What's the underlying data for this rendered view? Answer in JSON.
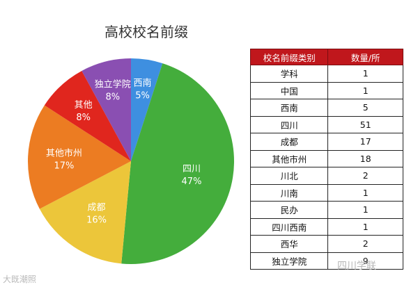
{
  "chart_data": [
    {
      "type": "pie",
      "title": "高校校名前缀",
      "slices": [
        {
          "name": "西南",
          "percent": 5,
          "label_pct": "5%",
          "color": "#3e8fe0"
        },
        {
          "name": "四川",
          "percent": 47,
          "label_pct": "47%",
          "color": "#44ad3c"
        },
        {
          "name": "成都",
          "percent": 16,
          "label_pct": "16%",
          "color": "#ecc63a"
        },
        {
          "name": "其他市州",
          "percent": 17,
          "label_pct": "17%",
          "color": "#ec7c22"
        },
        {
          "name": "其他",
          "percent": 8,
          "label_pct": "8%",
          "color": "#e0261e"
        },
        {
          "name": "独立学院",
          "percent": 8,
          "label_pct": "8%",
          "color": "#8a4fb2"
        }
      ]
    },
    {
      "type": "table",
      "columns": [
        "校名前缀类别",
        "数量/所"
      ],
      "rows": [
        [
          "学科",
          "1"
        ],
        [
          "中国",
          "1"
        ],
        [
          "西南",
          "5"
        ],
        [
          "四川",
          "51"
        ],
        [
          "成都",
          "17"
        ],
        [
          "其他市州",
          "18"
        ],
        [
          "川北",
          "2"
        ],
        [
          "川南",
          "1"
        ],
        [
          "民办",
          "1"
        ],
        [
          "四川西南",
          "1"
        ],
        [
          "西华",
          "2"
        ],
        [
          "独立学院",
          "9"
        ]
      ],
      "header_color": "#c0171c"
    }
  ],
  "watermarks": {
    "left": "大既潮照",
    "right": "四川学联"
  }
}
